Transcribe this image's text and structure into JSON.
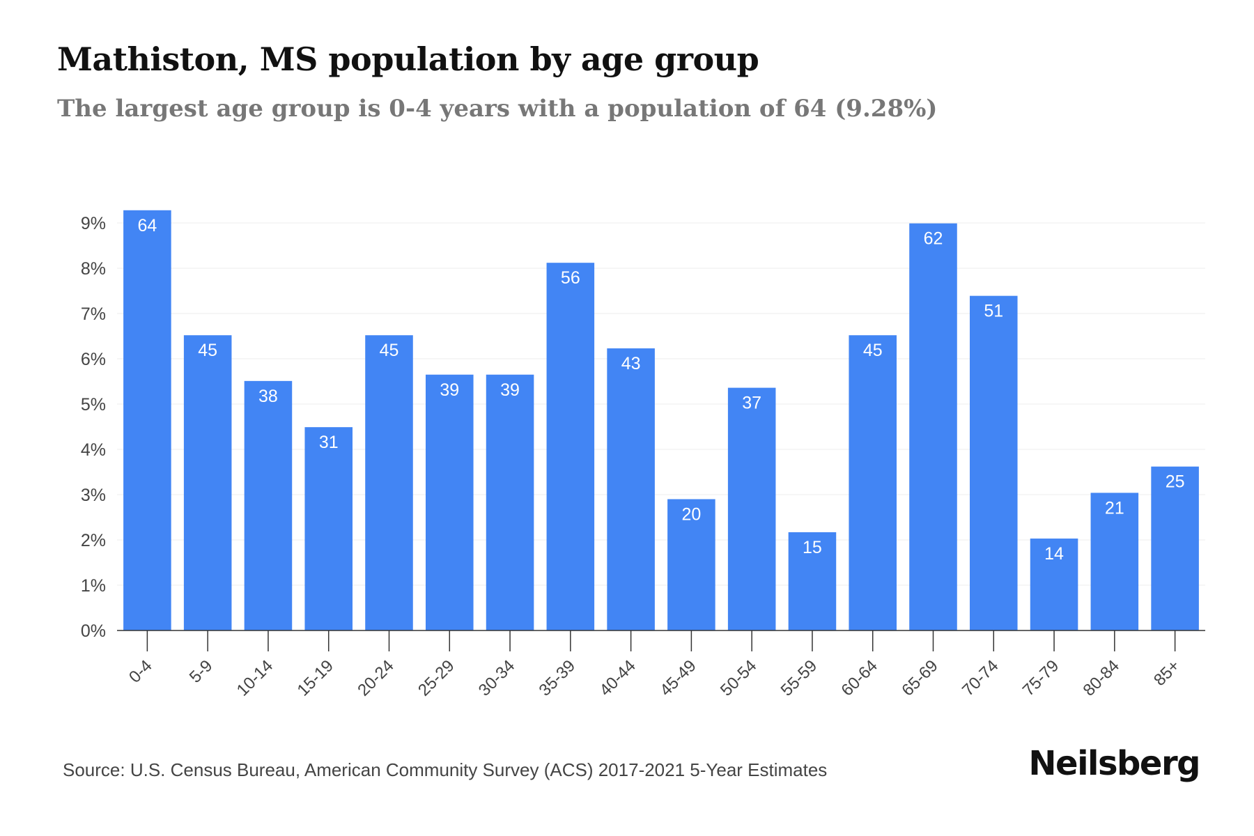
{
  "header": {
    "title": "Mathiston, MS population by age group",
    "subtitle": "The largest age group is 0-4 years with a population of 64 (9.28%)"
  },
  "footer": {
    "source": "Source: U.S. Census Bureau, American Community Survey (ACS) 2017-2021 5-Year Estimates",
    "brand": "Neilsberg"
  },
  "colors": {
    "bar": "#4285f4",
    "bar_label": "#ffffff",
    "grid": "#eeeeee",
    "axis": "#333333",
    "tick_label": "#444444"
  },
  "chart_data": {
    "type": "bar",
    "title": "Mathiston, MS population by age group",
    "subtitle": "The largest age group is 0-4 years with a population of 64 (9.28%)",
    "xlabel": "",
    "ylabel": "",
    "categories": [
      "0-4",
      "5-9",
      "10-14",
      "15-19",
      "20-24",
      "25-29",
      "30-34",
      "35-39",
      "40-44",
      "45-49",
      "50-54",
      "55-59",
      "60-64",
      "65-69",
      "70-74",
      "75-79",
      "80-84",
      "85+"
    ],
    "values": [
      64,
      45,
      38,
      31,
      45,
      39,
      39,
      56,
      43,
      20,
      37,
      15,
      45,
      62,
      51,
      14,
      21,
      25
    ],
    "percentages": [
      9.28,
      6.52,
      5.51,
      4.49,
      6.52,
      5.65,
      5.65,
      8.12,
      6.23,
      2.9,
      5.36,
      2.17,
      6.52,
      8.99,
      7.39,
      2.03,
      3.04,
      3.62
    ],
    "ylim": [
      0,
      9
    ],
    "yticks": [
      0,
      1,
      2,
      3,
      4,
      5,
      6,
      7,
      8,
      9
    ],
    "ytick_labels": [
      "0%",
      "1%",
      "2%",
      "3%",
      "4%",
      "5%",
      "6%",
      "7%",
      "8%",
      "9%"
    ],
    "grid": true,
    "legend": "none"
  }
}
